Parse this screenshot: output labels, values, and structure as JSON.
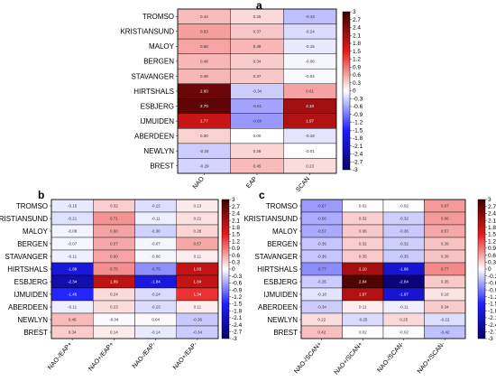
{
  "colors": {
    "negative_extreme": "#08006b",
    "negative_mid": "#1f1fff",
    "neutral": "#ffffff",
    "positive_mid": "#e81a1a",
    "positive_extreme": "#3d0000"
  },
  "chart_data": [
    {
      "type": "heatmap",
      "panel": "a",
      "rows": [
        "TROMSO",
        "KRISTIANSUND",
        "MALOY",
        "BERGEN",
        "STAVANGER",
        "HIRTSHALS",
        "ESBJERG",
        "IJMUIDEN",
        "ABERDEEN",
        "NEWLYN",
        "BREST"
      ],
      "columns": [
        "NAO",
        "EAP",
        "SCAN"
      ],
      "values": [
        [
          0.44,
          0.25,
          -0.43
        ],
        [
          0.63,
          0.37,
          -0.24
        ],
        [
          0.6,
          0.48,
          -0.15
        ],
        [
          0.48,
          0.34,
          -0.06
        ],
        [
          0.48,
          0.37,
          -0.04
        ],
        [
          2.6,
          -0.34,
          0.61
        ],
        [
          2.7,
          -0.61,
          2.1
        ],
        [
          1.77,
          -0.69,
          1.97
        ],
        [
          0.3,
          0.0,
          -0.18
        ],
        [
          -0.34,
          0.28,
          -0.01
        ],
        [
          -0.29,
          0.45,
          0.23
        ]
      ],
      "colorbar": {
        "min": -3,
        "max": 3,
        "ticks": [
          3,
          2.7,
          2.4,
          2.1,
          1.8,
          1.5,
          1.2,
          0.9,
          0.6,
          0.3,
          0,
          -0.3,
          -0.6,
          -0.9,
          -1.2,
          -1.5,
          -1.8,
          -2.1,
          -2.4,
          -2.7,
          -3
        ]
      }
    },
    {
      "type": "heatmap",
      "panel": "b",
      "rows": [
        "TROMSO",
        "KRISTIANSUND",
        "MALOY",
        "BERGEN",
        "STAVANGER",
        "HIRTSHALS",
        "ESBJERG",
        "IJMUIDEN",
        "ABERDEEN",
        "NEWLYN",
        "BREST"
      ],
      "columns": [
        "NAO-/EAP+",
        "NAO+/EAP+",
        "NAO-/EAP-",
        "NAO+/EAP-"
      ],
      "values": [
        [
          -0.15,
          0.32,
          -0.22,
          0.13
        ],
        [
          -0.21,
          0.71,
          -0.11,
          0.21
        ],
        [
          -0.08,
          0.6,
          -0.3,
          0.28
        ],
        [
          -0.07,
          0.57,
          -0.07,
          0.57
        ],
        [
          -0.11,
          0.6,
          -0.06,
          0.11
        ],
        [
          -1.89,
          0.75,
          -0.75,
          1.83
        ],
        [
          -2.34,
          1.89,
          -1.84,
          1.84
        ],
        [
          -1.46,
          0.24,
          -0.24,
          1.34
        ],
        [
          -0.11,
          0.23,
          -0.23,
          0.11
        ],
        [
          0.46,
          -0.04,
          0.04,
          -0.36
        ],
        [
          0.34,
          0.14,
          -0.14,
          -0.34
        ]
      ],
      "colorbar": {
        "min": -3,
        "max": 3,
        "ticks": [
          3,
          2.7,
          2.4,
          2.1,
          1.8,
          1.5,
          1.2,
          0.9,
          0.6,
          0.3,
          0,
          -0.3,
          -0.6,
          -0.9,
          -1.2,
          -1.5,
          -1.8,
          -2.1,
          -2.4,
          -2.7,
          -3
        ]
      }
    },
    {
      "type": "heatmap",
      "panel": "c",
      "rows": [
        "TROMSO",
        "KRISTIANSUND",
        "MALOY",
        "BERGEN",
        "STAVANGER",
        "HIRTSHALS",
        "ESBJERG",
        "IJMUIDEN",
        "ABERDEEN",
        "NEWLYN",
        "BREST"
      ],
      "columns": [
        "NAO-/SCAN+",
        "NAO+/SCAN+",
        "NAO-/SCAN-",
        "NAO+/SCAN-"
      ],
      "values": [
        [
          -0.67,
          0.02,
          -0.02,
          0.67
        ],
        [
          -0.56,
          0.32,
          -0.32,
          0.66
        ],
        [
          -0.57,
          0.36,
          -0.36,
          0.57
        ],
        [
          -0.39,
          0.32,
          -0.32,
          0.39
        ],
        [
          -0.39,
          0.35,
          -0.35,
          0.39
        ],
        [
          -0.77,
          2.1,
          -1.96,
          0.77
        ],
        [
          -0.35,
          2.84,
          -2.84,
          0.35
        ],
        [
          -0.18,
          1.97,
          -1.97,
          0.18
        ],
        [
          -0.34,
          0.11,
          -0.11,
          0.34
        ],
        [
          0.22,
          -0.25,
          0.25,
          -0.22
        ],
        [
          0.42,
          0.02,
          -0.02,
          -0.42
        ]
      ],
      "colorbar": {
        "min": -3,
        "max": 3,
        "ticks": [
          3,
          2.7,
          2.4,
          2.1,
          1.8,
          1.5,
          1.2,
          0.9,
          0.6,
          0.3,
          0,
          -0.3,
          -0.6,
          -0.9,
          -1.2,
          -1.5,
          -1.8,
          -2.1,
          -2.4,
          -2.7,
          -3
        ]
      }
    }
  ]
}
